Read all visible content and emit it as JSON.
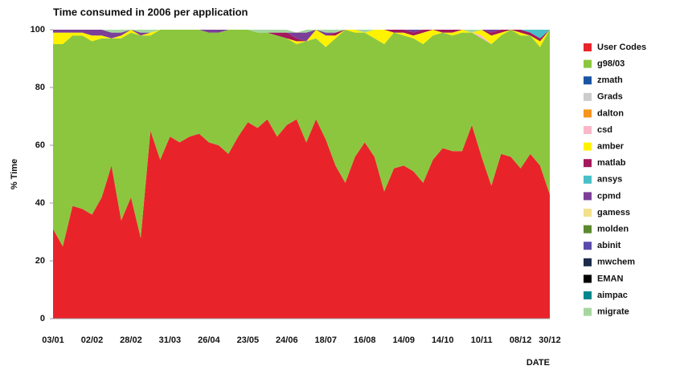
{
  "chart_data": {
    "type": "stacked_area",
    "title": "Time consumed in 2006 per application",
    "y_label": "% Time",
    "x_label": "DATE",
    "categories": [
      "03/01",
      null,
      null,
      null,
      "02/02",
      null,
      null,
      null,
      "28/02",
      null,
      null,
      null,
      "31/03",
      null,
      null,
      null,
      "26/04",
      null,
      null,
      null,
      "23/05",
      null,
      null,
      null,
      "24/06",
      null,
      null,
      null,
      "18/07",
      null,
      null,
      null,
      "16/08",
      null,
      null,
      null,
      "14/09",
      null,
      null,
      null,
      "14/10",
      null,
      null,
      null,
      "10/11",
      null,
      null,
      null,
      "08/12",
      null,
      null,
      "30/12"
    ],
    "ylim": [
      0,
      100
    ],
    "yticks": [
      0,
      20,
      40,
      60,
      80,
      100
    ],
    "series": [
      {
        "name": "User Codes",
        "color": "#e8242a",
        "values": [
          31,
          25,
          39,
          38,
          36,
          42,
          53,
          34,
          42,
          28,
          65,
          55,
          63,
          61,
          63,
          64,
          61,
          60,
          57,
          63,
          68,
          66,
          69,
          63,
          67,
          69,
          61,
          69,
          62,
          53,
          47,
          56,
          61,
          56,
          44,
          52,
          53,
          51,
          47,
          55,
          59,
          58,
          58,
          67,
          56,
          46,
          57,
          56,
          52,
          57,
          53,
          43
        ]
      },
      {
        "name": "g98/03",
        "color": "#8cc63f",
        "values": [
          64,
          70,
          59,
          60,
          60,
          55,
          44,
          63,
          57,
          70,
          33,
          45,
          37,
          39,
          37,
          36,
          38,
          39,
          43,
          37,
          32,
          33,
          30,
          35,
          30,
          26,
          35,
          28,
          32,
          44,
          53,
          43,
          38,
          41,
          51,
          47,
          45,
          46,
          48,
          43,
          40,
          40,
          41,
          32,
          41,
          49,
          41,
          44,
          46,
          41,
          41,
          57
        ]
      },
      {
        "name": "zmath",
        "color": "#1a55a5",
        "values": [
          0,
          0,
          0,
          0,
          0,
          0,
          0,
          0,
          0,
          0,
          0,
          0,
          0,
          0,
          0,
          0,
          0,
          0,
          0,
          0,
          0,
          0,
          0,
          0,
          0,
          0,
          0,
          0,
          0,
          0,
          0,
          0,
          0,
          0,
          0,
          0,
          0,
          0,
          0,
          0,
          0,
          0,
          0,
          0,
          0,
          0,
          0,
          0,
          0,
          0,
          0,
          0
        ]
      },
      {
        "name": "Grads",
        "color": "#cccccc",
        "values": [
          0,
          0,
          0,
          0,
          0,
          0,
          0,
          0,
          0,
          0,
          0,
          0,
          0,
          0,
          0,
          0,
          0,
          0,
          0,
          0,
          0,
          0,
          0,
          0,
          0,
          0,
          0,
          0,
          0,
          0,
          0,
          0,
          0,
          0,
          0,
          0,
          0,
          0,
          0,
          0,
          0,
          0,
          0,
          0,
          0,
          0,
          0,
          0,
          0,
          0,
          0,
          0
        ]
      },
      {
        "name": "dalton",
        "color": "#f7941d",
        "values": [
          0,
          0,
          0,
          0,
          0,
          0,
          0,
          0,
          0,
          0,
          0,
          0,
          0,
          0,
          0,
          0,
          0,
          0,
          0,
          0,
          0,
          0,
          0,
          0,
          0,
          0,
          0,
          0,
          0,
          0,
          0,
          0,
          0,
          0,
          0,
          0,
          0,
          0,
          0,
          0,
          0,
          0,
          0,
          0,
          0,
          0,
          0,
          0,
          0,
          0,
          0,
          0
        ]
      },
      {
        "name": "csd",
        "color": "#f9b8c8",
        "values": [
          0,
          0,
          0,
          0,
          0,
          0,
          0,
          0,
          0,
          0,
          0,
          0,
          0,
          0,
          0,
          0,
          0,
          0,
          0,
          0,
          0,
          0,
          0,
          0,
          0,
          0,
          0,
          0,
          0,
          0,
          0,
          0,
          0,
          0,
          0,
          0,
          0,
          0,
          0,
          0,
          0,
          0,
          0,
          0,
          1,
          0,
          0,
          0,
          0,
          0,
          0,
          0
        ]
      },
      {
        "name": "amber",
        "color": "#fff200",
        "values": [
          4,
          4,
          1,
          1,
          2,
          1,
          0,
          1,
          1,
          0,
          1,
          0,
          0,
          0,
          0,
          0,
          0,
          0,
          0,
          0,
          0,
          0,
          0,
          0,
          0,
          1,
          0,
          3,
          4,
          1,
          0,
          1,
          0,
          3,
          5,
          0,
          1,
          1,
          4,
          2,
          0,
          1,
          1,
          0,
          2,
          3,
          1,
          0,
          1,
          0,
          2,
          0
        ]
      },
      {
        "name": "matlab",
        "color": "#a3195b",
        "values": [
          0,
          0,
          0,
          0,
          0,
          0,
          0,
          0,
          0,
          0,
          0,
          0,
          0,
          0,
          0,
          0,
          0,
          0,
          0,
          0,
          0,
          0,
          0,
          1,
          2,
          1,
          0,
          0,
          0,
          1,
          0,
          0,
          0,
          0,
          0,
          1,
          1,
          1,
          1,
          0,
          1,
          1,
          0,
          0,
          0,
          1,
          1,
          0,
          1,
          1,
          1,
          0
        ]
      },
      {
        "name": "ansys",
        "color": "#49c0c8",
        "values": [
          0,
          0,
          0,
          0,
          0,
          0,
          0,
          0,
          0,
          0,
          0,
          0,
          0,
          0,
          0,
          0,
          0,
          0,
          0,
          0,
          0,
          0,
          0,
          0,
          0,
          0,
          0,
          0,
          0,
          0,
          0,
          0,
          0,
          0,
          0,
          0,
          0,
          0,
          0,
          0,
          0,
          0,
          0,
          0,
          0,
          0,
          0,
          0,
          0,
          1,
          3,
          0
        ]
      },
      {
        "name": "cpmd",
        "color": "#7b3f98",
        "values": [
          1,
          1,
          1,
          1,
          2,
          2,
          2,
          1,
          0,
          1,
          0,
          0,
          0,
          0,
          0,
          0,
          1,
          1,
          0,
          0,
          0,
          0,
          0,
          0,
          0,
          2,
          3,
          0,
          1,
          0,
          0,
          0,
          0,
          0,
          0,
          0,
          0,
          1,
          0,
          0,
          0,
          0,
          0,
          0,
          0,
          1,
          0,
          0,
          0,
          0,
          0,
          0
        ]
      },
      {
        "name": "gamess",
        "color": "#f3e08a",
        "values": [
          0,
          0,
          0,
          0,
          0,
          0,
          0,
          0,
          0,
          0,
          0,
          0,
          0,
          0,
          0,
          0,
          0,
          0,
          0,
          0,
          0,
          0,
          0,
          0,
          0,
          0,
          0,
          0,
          0,
          0,
          0,
          0,
          0,
          0,
          0,
          0,
          0,
          0,
          0,
          0,
          0,
          0,
          0,
          0,
          0,
          0,
          0,
          0,
          0,
          0,
          0,
          0
        ]
      },
      {
        "name": "molden",
        "color": "#5b8a2e",
        "values": [
          0,
          0,
          0,
          0,
          0,
          0,
          0,
          0,
          0,
          0,
          0,
          0,
          0,
          0,
          0,
          0,
          0,
          0,
          0,
          0,
          0,
          0,
          0,
          0,
          0,
          0,
          0,
          0,
          0,
          0,
          0,
          0,
          0,
          0,
          0,
          0,
          0,
          0,
          0,
          0,
          0,
          0,
          0,
          0,
          0,
          0,
          0,
          0,
          0,
          0,
          0,
          0
        ]
      },
      {
        "name": "abinit",
        "color": "#5a4bab",
        "values": [
          0,
          0,
          0,
          0,
          0,
          0,
          0,
          0,
          0,
          0,
          0,
          0,
          0,
          0,
          0,
          0,
          0,
          0,
          0,
          0,
          0,
          0,
          0,
          0,
          0,
          0,
          0,
          0,
          0,
          0,
          0,
          0,
          0,
          0,
          0,
          0,
          0,
          0,
          0,
          0,
          0,
          0,
          0,
          0,
          0,
          0,
          0,
          0,
          0,
          0,
          0,
          0
        ]
      },
      {
        "name": "mwchem",
        "color": "#1c2b4a",
        "values": [
          0,
          0,
          0,
          0,
          0,
          0,
          0,
          0,
          0,
          0,
          0,
          0,
          0,
          0,
          0,
          0,
          0,
          0,
          0,
          0,
          0,
          0,
          0,
          0,
          0,
          0,
          0,
          0,
          0,
          0,
          0,
          0,
          0,
          0,
          0,
          0,
          0,
          0,
          0,
          0,
          0,
          0,
          0,
          0,
          0,
          0,
          0,
          0,
          0,
          0,
          0,
          0
        ]
      },
      {
        "name": "EMAN",
        "color": "#000000",
        "values": [
          0,
          0,
          0,
          0,
          0,
          0,
          0,
          0,
          0,
          0,
          0,
          0,
          0,
          0,
          0,
          0,
          0,
          0,
          0,
          0,
          0,
          0,
          0,
          0,
          0,
          0,
          0,
          0,
          0,
          0,
          0,
          0,
          0,
          0,
          0,
          0,
          0,
          0,
          0,
          0,
          0,
          0,
          0,
          0,
          0,
          0,
          0,
          0,
          0,
          0,
          0,
          0
        ]
      },
      {
        "name": "aimpac",
        "color": "#00868b",
        "values": [
          0,
          0,
          0,
          0,
          0,
          0,
          0,
          0,
          0,
          0,
          0,
          0,
          0,
          0,
          0,
          0,
          0,
          0,
          0,
          0,
          0,
          0,
          0,
          0,
          0,
          0,
          0,
          0,
          0,
          0,
          0,
          0,
          0,
          0,
          0,
          0,
          0,
          0,
          0,
          0,
          0,
          0,
          0,
          0,
          0,
          0,
          0,
          0,
          0,
          0,
          0,
          0
        ]
      },
      {
        "name": "migrate",
        "color": "#a5d6a0",
        "values": [
          0,
          0,
          0,
          0,
          0,
          0,
          1,
          1,
          0,
          1,
          1,
          0,
          0,
          0,
          0,
          0,
          0,
          0,
          0,
          0,
          0,
          1,
          1,
          1,
          1,
          0,
          1,
          0,
          1,
          1,
          0,
          0,
          1,
          0,
          0,
          0,
          0,
          0,
          0,
          0,
          0,
          0,
          0,
          1,
          0,
          0,
          0,
          0,
          0,
          0,
          0,
          0
        ]
      }
    ]
  }
}
